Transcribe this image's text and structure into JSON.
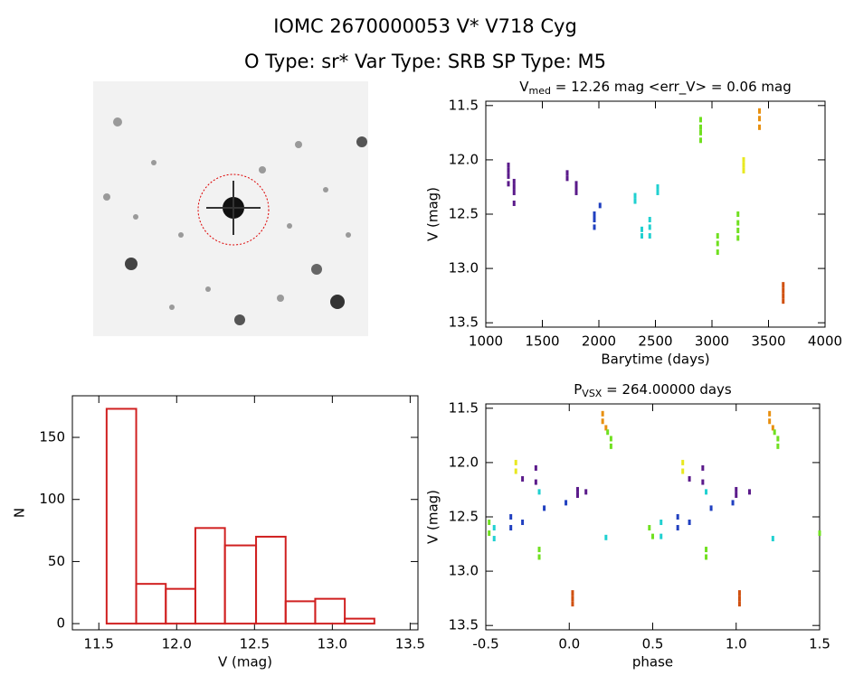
{
  "header": {
    "title": "IOMC 2670000053   V* V718 Cyg",
    "subtitle": "O Type: sr*  Var Type: SRB  SP Type: M5"
  },
  "chart_data": [
    {
      "type": "scatter",
      "title": [
        "V",
        "med",
        " = 12.26 mag <err_V> = 0.06 mag"
      ],
      "x_label": "Barytime (days)",
      "y_label": "V (mag)",
      "xlim": [
        1000,
        4000
      ],
      "ylim": [
        13.54,
        11.46
      ],
      "xticks": [
        1000,
        1500,
        2000,
        2500,
        3000,
        3500,
        4000
      ],
      "yticks": [
        11.5,
        {
          "value": 12.0,
          "label": "12.0"
        },
        12.5,
        {
          "value": 13.0,
          "label": "13.0"
        },
        13.5
      ],
      "series": [
        {
          "color": "#5a1a8a",
          "x": [
            1200,
            1200,
            1200,
            1200,
            1250,
            1250,
            1250,
            1250,
            1720,
            1720,
            1800,
            1800,
            1800
          ],
          "values": [
            12.05,
            12.1,
            12.15,
            12.22,
            12.2,
            12.25,
            12.3,
            12.4,
            12.12,
            12.17,
            12.22,
            12.26,
            12.3
          ]
        },
        {
          "color": "#2040c0",
          "x": [
            1960,
            1960,
            1960,
            2010
          ],
          "values": [
            12.5,
            12.55,
            12.62,
            12.42
          ]
        },
        {
          "color": "#20d0d0",
          "x": [
            2320,
            2320,
            2380,
            2380,
            2450,
            2450,
            2450,
            2520,
            2520
          ],
          "values": [
            12.33,
            12.38,
            12.64,
            12.7,
            12.55,
            12.62,
            12.7,
            12.25,
            12.3
          ]
        },
        {
          "color": "#70e020",
          "x": [
            2900,
            2900,
            2900,
            2900,
            3050,
            3050,
            3050,
            3230,
            3230,
            3230,
            3230
          ],
          "values": [
            11.63,
            11.7,
            11.75,
            11.82,
            12.7,
            12.77,
            12.85,
            12.5,
            12.58,
            12.65,
            12.72
          ]
        },
        {
          "color": "#e8e820",
          "x": [
            3280,
            3280,
            3280
          ],
          "values": [
            12.0,
            12.05,
            12.1
          ]
        },
        {
          "color": "#e89010",
          "x": [
            3420,
            3420,
            3420
          ],
          "values": [
            11.55,
            11.62,
            11.7
          ]
        },
        {
          "color": "#d05010",
          "x": [
            3630,
            3630,
            3630,
            3630
          ],
          "values": [
            13.15,
            13.2,
            13.25,
            13.3
          ]
        }
      ]
    },
    {
      "type": "histogram",
      "x_label": "V (mag)",
      "y_label": "N",
      "color": "#d02020",
      "bins": [
        11.55,
        11.74,
        11.93,
        12.12,
        12.31,
        12.51,
        12.7,
        12.89,
        13.08,
        13.27
      ],
      "values": [
        173,
        32,
        28,
        77,
        63,
        70,
        18,
        20,
        4
      ],
      "xlim": [
        11.33,
        13.55
      ],
      "ylim": [
        -5,
        183.5
      ],
      "xticks": [
        11.5,
        {
          "value": 12.0,
          "label": "12.0"
        },
        12.5,
        {
          "value": 13.0,
          "label": "13.0"
        },
        13.5
      ],
      "yticks": [
        0,
        50,
        100,
        150
      ]
    },
    {
      "type": "scatter",
      "title": [
        "P",
        "VSX",
        " = 264.00000 days"
      ],
      "x_label": "phase",
      "y_label": "V (mag)",
      "xlim": [
        -0.5,
        1.5
      ],
      "ylim": [
        13.54,
        11.46
      ],
      "xticks": [
        -0.5,
        {
          "value": 0.0,
          "label": "0.0"
        },
        0.5,
        {
          "value": 1.0,
          "label": "1.0"
        },
        1.5
      ],
      "yticks": [
        11.5,
        {
          "value": 12.0,
          "label": "12.0"
        },
        12.5,
        {
          "value": 13.0,
          "label": "13.0"
        },
        13.5
      ],
      "series": [
        {
          "color": "#e89010",
          "x": [
            0.2,
            0.2,
            0.22,
            1.2,
            1.2,
            1.22
          ],
          "values": [
            11.55,
            11.62,
            11.68,
            11.55,
            11.62,
            11.68
          ]
        },
        {
          "color": "#70e020",
          "x": [
            0.23,
            0.25,
            0.25,
            1.23,
            1.25,
            1.25,
            -0.18,
            -0.18,
            0.82,
            0.82,
            -0.48,
            -0.48,
            0.48,
            0.5,
            1.5
          ],
          "values": [
            11.72,
            11.78,
            11.85,
            11.72,
            11.78,
            11.85,
            12.8,
            12.87,
            12.8,
            12.87,
            12.55,
            12.65,
            12.6,
            12.68,
            12.65
          ]
        },
        {
          "color": "#e8e820",
          "x": [
            -0.32,
            -0.32,
            0.68,
            0.68
          ],
          "values": [
            12.0,
            12.08,
            12.0,
            12.08
          ]
        },
        {
          "color": "#5a1a8a",
          "x": [
            -0.28,
            -0.2,
            -0.2,
            0.05,
            0.05,
            0.1,
            0.72,
            0.8,
            0.8,
            1.0,
            1.0,
            1.08
          ],
          "values": [
            12.15,
            12.05,
            12.18,
            12.25,
            12.3,
            12.27,
            12.15,
            12.05,
            12.18,
            12.25,
            12.3,
            12.27
          ]
        },
        {
          "color": "#2040c0",
          "x": [
            -0.35,
            -0.35,
            -0.28,
            -0.15,
            -0.02,
            0.65,
            0.65,
            0.72,
            0.85,
            0.98
          ],
          "values": [
            12.5,
            12.6,
            12.55,
            12.42,
            12.37,
            12.5,
            12.6,
            12.55,
            12.42,
            12.37
          ]
        },
        {
          "color": "#20d0d0",
          "x": [
            -0.18,
            -0.45,
            -0.45,
            0.22,
            0.55,
            0.55,
            0.82,
            1.22
          ],
          "values": [
            12.27,
            12.6,
            12.7,
            12.69,
            12.55,
            12.68,
            12.27,
            12.7
          ]
        },
        {
          "color": "#d05010",
          "x": [
            0.02,
            0.02,
            0.02,
            1.02,
            1.02,
            1.02
          ],
          "values": [
            13.2,
            13.25,
            13.3,
            13.2,
            13.25,
            13.3
          ]
        }
      ]
    }
  ]
}
